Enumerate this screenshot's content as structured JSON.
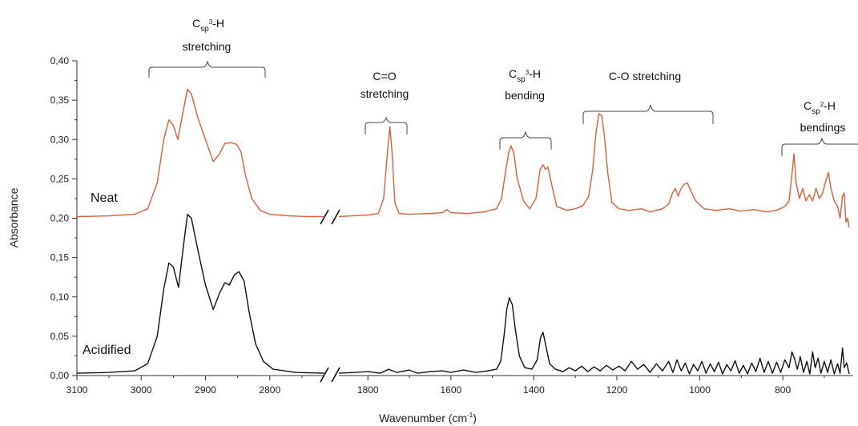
{
  "chart_data": {
    "type": "line",
    "xlabel": "Wavenumber (cm",
    "xlabel_sup": "-1",
    "xlabel_close": ")",
    "ylabel": "Absorbance",
    "ylim": [
      0,
      0.4
    ],
    "y_ticks": [
      "0,00",
      "0,05",
      "0,10",
      "0,15",
      "0,20",
      "0,25",
      "0,30",
      "0,35",
      "0,40"
    ],
    "x_ticks_left": [
      "3100",
      "3000",
      "2900",
      "2800"
    ],
    "x_ticks_right": [
      "1800",
      "1600",
      "1400",
      "1200",
      "1000",
      "800"
    ],
    "x_axis_break": "//",
    "colors": {
      "neat": "#d9603b",
      "acidified": "#111111"
    },
    "series": [
      {
        "name": "Neat",
        "points": [
          [
            3100,
            0.202
          ],
          [
            3050,
            0.203
          ],
          [
            3010,
            0.205
          ],
          [
            2990,
            0.212
          ],
          [
            2975,
            0.245
          ],
          [
            2965,
            0.3
          ],
          [
            2957,
            0.325
          ],
          [
            2950,
            0.318
          ],
          [
            2943,
            0.3
          ],
          [
            2935,
            0.335
          ],
          [
            2928,
            0.364
          ],
          [
            2922,
            0.358
          ],
          [
            2912,
            0.328
          ],
          [
            2900,
            0.3
          ],
          [
            2888,
            0.272
          ],
          [
            2878,
            0.282
          ],
          [
            2870,
            0.295
          ],
          [
            2860,
            0.296
          ],
          [
            2852,
            0.294
          ],
          [
            2845,
            0.285
          ],
          [
            2838,
            0.255
          ],
          [
            2828,
            0.225
          ],
          [
            2815,
            0.21
          ],
          [
            2800,
            0.205
          ],
          [
            2770,
            0.203
          ],
          [
            2740,
            0.202
          ],
          [
            2715,
            0.202
          ],
          [
            1870,
            0.202
          ],
          [
            1840,
            0.203
          ],
          [
            1800,
            0.204
          ],
          [
            1775,
            0.206
          ],
          [
            1762,
            0.225
          ],
          [
            1752,
            0.29
          ],
          [
            1747,
            0.316
          ],
          [
            1742,
            0.285
          ],
          [
            1735,
            0.22
          ],
          [
            1725,
            0.206
          ],
          [
            1700,
            0.205
          ],
          [
            1650,
            0.206
          ],
          [
            1620,
            0.207
          ],
          [
            1610,
            0.211
          ],
          [
            1600,
            0.207
          ],
          [
            1560,
            0.206
          ],
          [
            1520,
            0.208
          ],
          [
            1490,
            0.212
          ],
          [
            1478,
            0.225
          ],
          [
            1468,
            0.26
          ],
          [
            1460,
            0.285
          ],
          [
            1455,
            0.292
          ],
          [
            1448,
            0.282
          ],
          [
            1440,
            0.25
          ],
          [
            1425,
            0.222
          ],
          [
            1410,
            0.212
          ],
          [
            1395,
            0.225
          ],
          [
            1385,
            0.262
          ],
          [
            1378,
            0.268
          ],
          [
            1372,
            0.262
          ],
          [
            1366,
            0.265
          ],
          [
            1358,
            0.245
          ],
          [
            1345,
            0.215
          ],
          [
            1320,
            0.21
          ],
          [
            1300,
            0.212
          ],
          [
            1282,
            0.216
          ],
          [
            1268,
            0.228
          ],
          [
            1258,
            0.262
          ],
          [
            1250,
            0.31
          ],
          [
            1243,
            0.333
          ],
          [
            1236,
            0.33
          ],
          [
            1230,
            0.305
          ],
          [
            1222,
            0.258
          ],
          [
            1212,
            0.22
          ],
          [
            1195,
            0.212
          ],
          [
            1170,
            0.21
          ],
          [
            1140,
            0.212
          ],
          [
            1120,
            0.208
          ],
          [
            1090,
            0.212
          ],
          [
            1075,
            0.218
          ],
          [
            1066,
            0.232
          ],
          [
            1059,
            0.238
          ],
          [
            1052,
            0.228
          ],
          [
            1046,
            0.237
          ],
          [
            1038,
            0.243
          ],
          [
            1030,
            0.245
          ],
          [
            1022,
            0.235
          ],
          [
            1010,
            0.222
          ],
          [
            990,
            0.212
          ],
          [
            960,
            0.21
          ],
          [
            930,
            0.212
          ],
          [
            900,
            0.209
          ],
          [
            870,
            0.211
          ],
          [
            840,
            0.208
          ],
          [
            815,
            0.21
          ],
          [
            795,
            0.215
          ],
          [
            785,
            0.222
          ],
          [
            778,
            0.255
          ],
          [
            773,
            0.282
          ],
          [
            768,
            0.245
          ],
          [
            760,
            0.225
          ],
          [
            752,
            0.238
          ],
          [
            744,
            0.222
          ],
          [
            736,
            0.23
          ],
          [
            728,
            0.222
          ],
          [
            720,
            0.238
          ],
          [
            712,
            0.225
          ],
          [
            704,
            0.232
          ],
          [
            696,
            0.248
          ],
          [
            690,
            0.258
          ],
          [
            684,
            0.238
          ],
          [
            676,
            0.222
          ],
          [
            668,
            0.215
          ],
          [
            662,
            0.2
          ],
          [
            656,
            0.228
          ],
          [
            652,
            0.232
          ],
          [
            648,
            0.195
          ],
          [
            644,
            0.2
          ],
          [
            640,
            0.188
          ]
        ]
      },
      {
        "name": "Acidified",
        "points": [
          [
            3100,
            0.003
          ],
          [
            3050,
            0.004
          ],
          [
            3010,
            0.006
          ],
          [
            2990,
            0.015
          ],
          [
            2975,
            0.05
          ],
          [
            2965,
            0.11
          ],
          [
            2957,
            0.143
          ],
          [
            2950,
            0.138
          ],
          [
            2942,
            0.112
          ],
          [
            2935,
            0.16
          ],
          [
            2928,
            0.205
          ],
          [
            2922,
            0.2
          ],
          [
            2912,
            0.16
          ],
          [
            2900,
            0.115
          ],
          [
            2888,
            0.084
          ],
          [
            2878,
            0.105
          ],
          [
            2870,
            0.118
          ],
          [
            2863,
            0.115
          ],
          [
            2855,
            0.128
          ],
          [
            2848,
            0.132
          ],
          [
            2840,
            0.12
          ],
          [
            2832,
            0.08
          ],
          [
            2822,
            0.04
          ],
          [
            2810,
            0.018
          ],
          [
            2795,
            0.008
          ],
          [
            2760,
            0.004
          ],
          [
            2715,
            0.003
          ],
          [
            1870,
            0.003
          ],
          [
            1830,
            0.004
          ],
          [
            1800,
            0.005
          ],
          [
            1770,
            0.003
          ],
          [
            1750,
            0.008
          ],
          [
            1730,
            0.004
          ],
          [
            1700,
            0.007
          ],
          [
            1680,
            0.003
          ],
          [
            1650,
            0.005
          ],
          [
            1620,
            0.006
          ],
          [
            1600,
            0.004
          ],
          [
            1570,
            0.007
          ],
          [
            1540,
            0.004
          ],
          [
            1510,
            0.006
          ],
          [
            1490,
            0.008
          ],
          [
            1480,
            0.018
          ],
          [
            1472,
            0.05
          ],
          [
            1465,
            0.085
          ],
          [
            1459,
            0.099
          ],
          [
            1452,
            0.09
          ],
          [
            1445,
            0.06
          ],
          [
            1435,
            0.025
          ],
          [
            1422,
            0.01
          ],
          [
            1405,
            0.008
          ],
          [
            1392,
            0.02
          ],
          [
            1384,
            0.048
          ],
          [
            1378,
            0.055
          ],
          [
            1372,
            0.04
          ],
          [
            1362,
            0.015
          ],
          [
            1348,
            0.008
          ],
          [
            1330,
            0.005
          ],
          [
            1315,
            0.01
          ],
          [
            1300,
            0.006
          ],
          [
            1285,
            0.012
          ],
          [
            1270,
            0.005
          ],
          [
            1255,
            0.011
          ],
          [
            1240,
            0.006
          ],
          [
            1225,
            0.013
          ],
          [
            1210,
            0.007
          ],
          [
            1195,
            0.012
          ],
          [
            1180,
            0.006
          ],
          [
            1165,
            0.018
          ],
          [
            1150,
            0.008
          ],
          [
            1135,
            0.014
          ],
          [
            1120,
            0.004
          ],
          [
            1105,
            0.015
          ],
          [
            1090,
            0.006
          ],
          [
            1075,
            0.018
          ],
          [
            1065,
            0.004
          ],
          [
            1055,
            0.02
          ],
          [
            1045,
            0.006
          ],
          [
            1035,
            0.016
          ],
          [
            1025,
            0.002
          ],
          [
            1015,
            0.014
          ],
          [
            1005,
            0.006
          ],
          [
            995,
            0.018
          ],
          [
            985,
            0.003
          ],
          [
            975,
            0.015
          ],
          [
            965,
            0.005
          ],
          [
            955,
            0.017
          ],
          [
            945,
            0.002
          ],
          [
            935,
            0.014
          ],
          [
            925,
            0.006
          ],
          [
            915,
            0.019
          ],
          [
            905,
            0.003
          ],
          [
            895,
            0.013
          ],
          [
            885,
            0.002
          ],
          [
            875,
            0.016
          ],
          [
            865,
            0.005
          ],
          [
            855,
            0.022
          ],
          [
            845,
            0.004
          ],
          [
            835,
            0.018
          ],
          [
            825,
            0.003
          ],
          [
            815,
            0.017
          ],
          [
            805,
            0.004
          ],
          [
            795,
            0.02
          ],
          [
            785,
            0.01
          ],
          [
            778,
            0.03
          ],
          [
            772,
            0.022
          ],
          [
            765,
            0.008
          ],
          [
            758,
            0.024
          ],
          [
            750,
            0.004
          ],
          [
            742,
            0.018
          ],
          [
            735,
            0.002
          ],
          [
            728,
            0.03
          ],
          [
            722,
            0.01
          ],
          [
            715,
            0.022
          ],
          [
            708,
            0.003
          ],
          [
            700,
            0.018
          ],
          [
            692,
            0.004
          ],
          [
            684,
            0.02
          ],
          [
            676,
            0.002
          ],
          [
            668,
            0.015
          ],
          [
            662,
            0.003
          ],
          [
            656,
            0.035
          ],
          [
            652,
            0.01
          ],
          [
            646,
            0.016
          ],
          [
            640,
            0.002
          ]
        ]
      }
    ],
    "annotations": [
      {
        "main": "C",
        "sub": "sp",
        "sup": "3",
        "tail": "-H",
        "line2": "stretching"
      },
      {
        "main": "C=O",
        "line2": "stretching"
      },
      {
        "main": "C",
        "sub": "sp",
        "sup": "3",
        "tail": "-H",
        "line2": "bending"
      },
      {
        "main": "C-O stretching"
      },
      {
        "main": "C",
        "sub": "sp",
        "sup": "2",
        "tail": "-H",
        "line2": "bendings"
      }
    ]
  }
}
